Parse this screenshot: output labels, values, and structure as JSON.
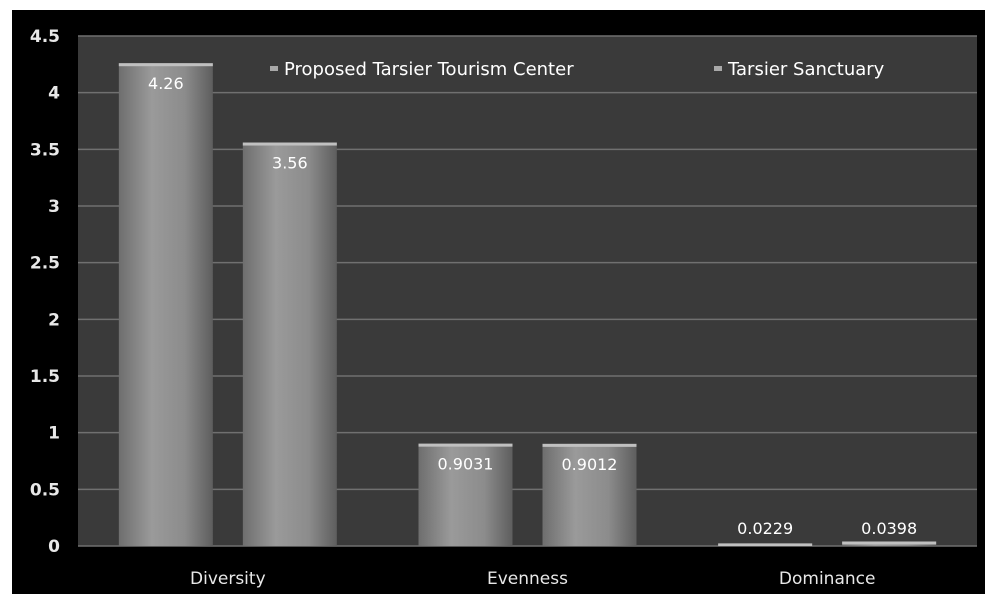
{
  "chart_data": {
    "type": "bar",
    "title": "",
    "xlabel": "",
    "ylabel": "",
    "categories": [
      "Diversity",
      "Evenness",
      "Dominance"
    ],
    "series": [
      {
        "name": "Proposed Tarsier Tourism Center",
        "values": [
          4.26,
          0.9031,
          0.0229
        ],
        "labels": [
          "4.26",
          "0.9031",
          "0.0229"
        ]
      },
      {
        "name": "Tarsier Sanctuary",
        "values": [
          3.56,
          0.9012,
          0.0398
        ],
        "labels": [
          "3.56",
          "0.9012",
          "0.0398"
        ]
      }
    ],
    "ylim": [
      0,
      4.5
    ],
    "yticks": [
      0,
      0.5,
      1,
      1.5,
      2,
      2.5,
      3,
      3.5,
      4,
      4.5
    ],
    "ytick_labels": [
      "0",
      "0.5",
      "1",
      "1.5",
      "2",
      "2.5",
      "3",
      "3.5",
      "4",
      "4.5"
    ],
    "grid": true,
    "legend_position": "top-right",
    "colors": {
      "background": "#000000",
      "plot_area": "#3a3a3a",
      "gridline": "#707070",
      "bar": "#8a8a8a",
      "bar_highlight": "#a8a8a8",
      "text": "#e8e8e8"
    }
  }
}
